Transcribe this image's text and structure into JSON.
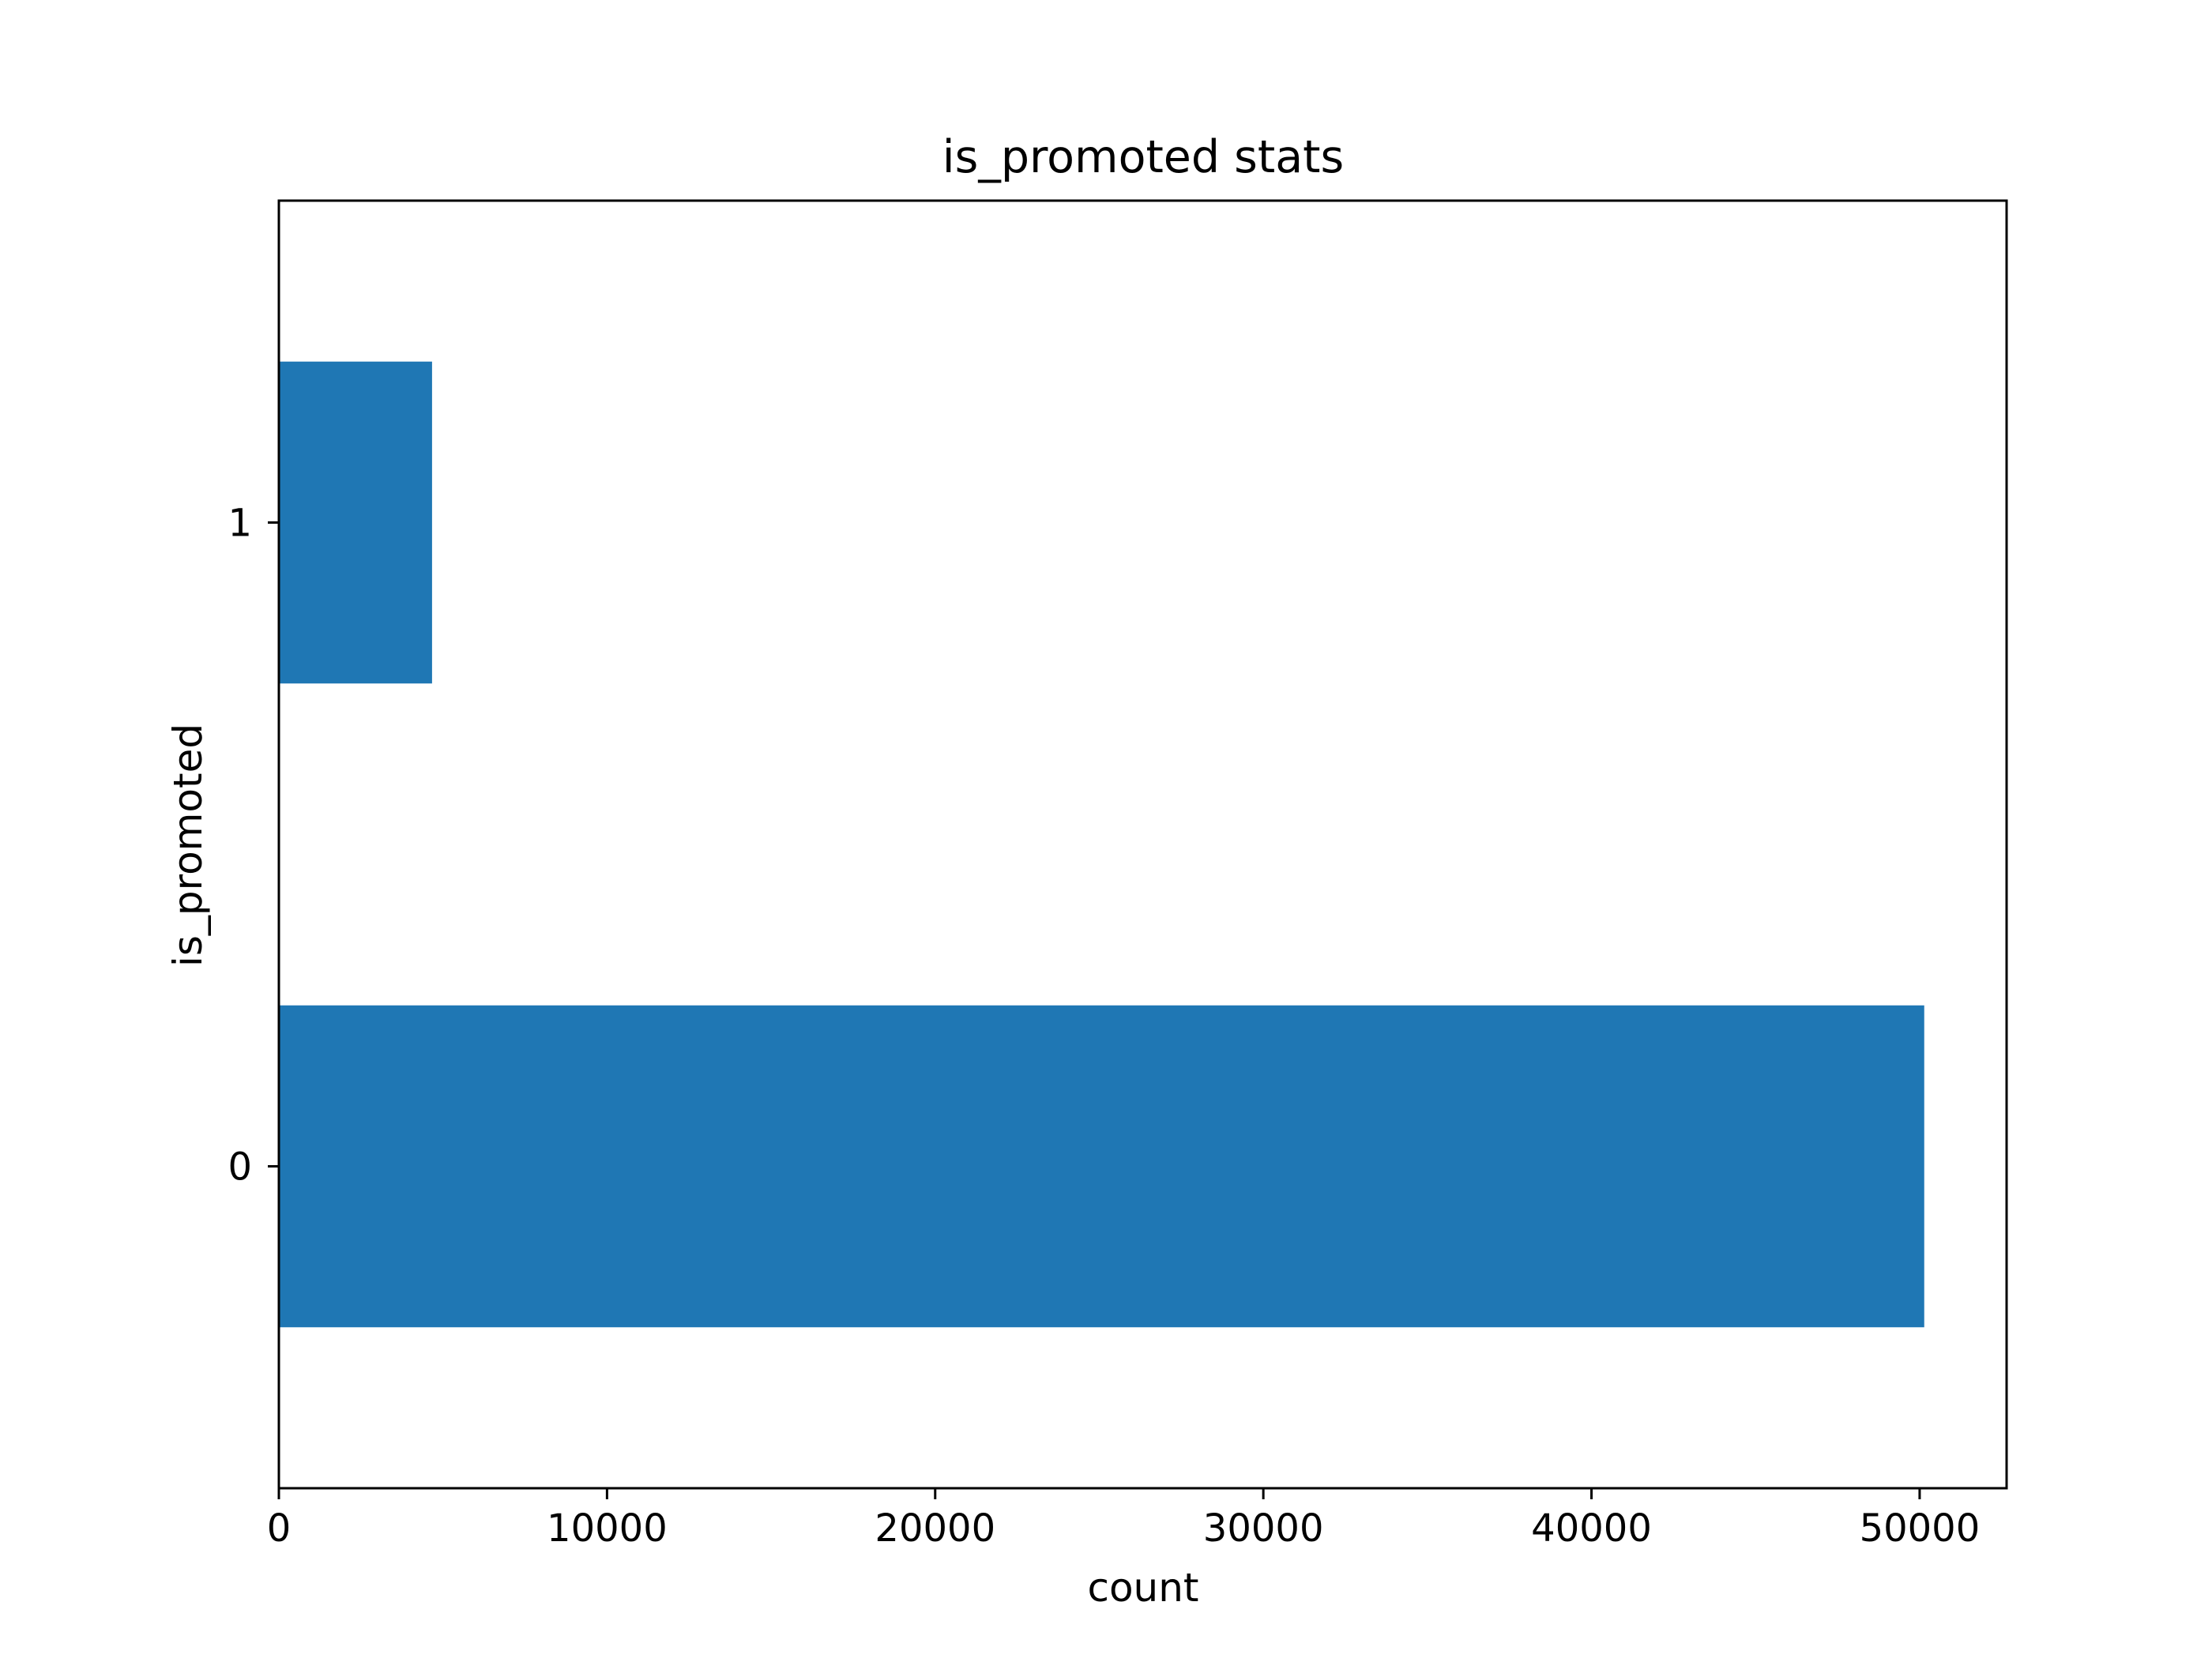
{
  "chart_data": {
    "type": "bar",
    "orientation": "horizontal",
    "title": "is_promoted stats",
    "xlabel": "count",
    "ylabel": "is_promoted",
    "categories": [
      "0",
      "1"
    ],
    "values": [
      50140,
      4668
    ],
    "xlim": [
      0,
      52650
    ],
    "xticks": [
      0,
      10000,
      20000,
      30000,
      40000,
      50000
    ],
    "xtick_labels": [
      "0",
      "10000",
      "20000",
      "30000",
      "40000",
      "50000"
    ],
    "grid": false,
    "legend": "none",
    "bar_color": "#1f77b4"
  }
}
